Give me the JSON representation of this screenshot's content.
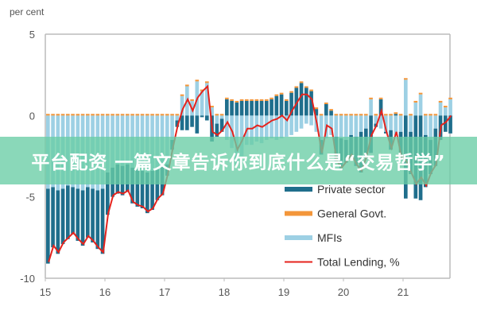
{
  "chart_data": {
    "type": "bar",
    "ylabel": "per cent",
    "ylim": [
      -10,
      5
    ],
    "yticks": [
      "5",
      "0",
      "-5",
      "-10"
    ],
    "xticks": [
      "15",
      "16",
      "17",
      "18",
      "19",
      "20",
      "21"
    ],
    "x_start": "2015-01",
    "frequency": "monthly",
    "grid": false,
    "legend_position": "bottom-right",
    "series": [
      {
        "name": "Private sector",
        "kind": "stacked-bar",
        "color": "#1f6e8c",
        "values": [
          -4.6,
          -3.7,
          -3.9,
          -3.4,
          -3.3,
          -2.9,
          -3.2,
          -3.4,
          -3.1,
          -3.3,
          -3.6,
          -4.0,
          -2.6,
          -1.8,
          -1.8,
          -1.8,
          -1.7,
          -2.2,
          -2.3,
          -2.3,
          -2.5,
          -2.4,
          -2.0,
          -1.9,
          -0.7,
          -0.6,
          -0.4,
          -0.9,
          -0.9,
          -0.7,
          -1.1,
          -0.1,
          -0.3,
          -1.6,
          -0.8,
          -0.8,
          1.0,
          0.9,
          0.8,
          0.9,
          0.9,
          0.9,
          0.9,
          0.9,
          0.9,
          1.0,
          1.2,
          1.3,
          0.9,
          1.4,
          1.7,
          2.0,
          1.7,
          1.5,
          0.4,
          -0.9,
          0.7,
          0.3,
          -1.6,
          -1.9,
          -1.4,
          -1.3,
          -1.8,
          -2.5,
          -1.8,
          -2.3,
          -0.2,
          1.0,
          -0.1,
          -1.2,
          0.1,
          -1.6,
          -5.1,
          -2.6,
          -5.1,
          -5.2,
          -3.2,
          -2.1,
          -2.3,
          -1.5,
          -1.0,
          -1.1
        ]
      },
      {
        "name": "General Govt.",
        "kind": "stacked-bar",
        "color": "#f3963a",
        "values": [
          0.1,
          0.1,
          0.1,
          0.1,
          0.1,
          0.1,
          0.1,
          0.1,
          0.1,
          0.1,
          0.1,
          0.1,
          0.1,
          0.1,
          0.1,
          0.1,
          0.1,
          0.1,
          0.1,
          0.1,
          0.1,
          0.1,
          0.1,
          0.1,
          0.1,
          0.1,
          0.1,
          0.1,
          0.1,
          0.1,
          0.1,
          0.1,
          0.1,
          0.1,
          0.1,
          0.1,
          0.1,
          0.1,
          0.1,
          0.1,
          0.1,
          0.1,
          0.1,
          0.1,
          0.1,
          0.1,
          0.1,
          0.1,
          0.1,
          0.1,
          0.1,
          0.1,
          0.1,
          0.1,
          0.1,
          0.1,
          0.1,
          0.1,
          0.1,
          0.1,
          0.1,
          0.1,
          0.1,
          0.1,
          0.1,
          0.1,
          0.1,
          0.1,
          0.1,
          0.1,
          0.1,
          0.1,
          0.1,
          0.1,
          0.1,
          0.1,
          0.1,
          0.1,
          0.1,
          0.1,
          0.1,
          0.1
        ]
      },
      {
        "name": "MFIs",
        "kind": "stacked-bar",
        "color": "#9dd0e4",
        "values": [
          -4.5,
          -4.4,
          -4.6,
          -4.5,
          -4.3,
          -4.4,
          -4.5,
          -4.6,
          -4.4,
          -4.5,
          -4.6,
          -4.5,
          -3.5,
          -3.2,
          -3.0,
          -3.1,
          -3.0,
          -3.2,
          -3.3,
          -3.4,
          -3.5,
          -3.4,
          -3.2,
          -3.0,
          -3.0,
          -1.5,
          -0.3,
          1.2,
          1.8,
          0.9,
          2.1,
          1.5,
          2.0,
          0.5,
          -0.5,
          -0.2,
          -1.5,
          -2.0,
          -3.0,
          -2.5,
          -1.8,
          -1.8,
          -1.6,
          -1.7,
          -1.5,
          -1.4,
          -1.5,
          -1.4,
          -1.3,
          -1.2,
          -1.0,
          -0.8,
          -0.5,
          -0.6,
          -1.0,
          -1.5,
          -1.4,
          -1.2,
          -1.3,
          -1.4,
          -1.5,
          -1.2,
          -1.3,
          -1.0,
          -0.8,
          1.0,
          -0.5,
          -0.8,
          -1.0,
          -0.9,
          -1.2,
          -1.0,
          2.2,
          -1.0,
          0.8,
          1.3,
          -1.2,
          -1.5,
          -0.8,
          0.8,
          0.5,
          1.0
        ]
      },
      {
        "name": "Total Lending, %",
        "kind": "line",
        "color": "#e5231d",
        "values": [
          -9.0,
          -8.0,
          -8.4,
          -7.8,
          -7.5,
          -7.2,
          -7.6,
          -7.9,
          -7.4,
          -7.7,
          -8.1,
          -8.4,
          -6.0,
          -4.9,
          -4.7,
          -4.8,
          -4.6,
          -5.3,
          -5.5,
          -5.6,
          -5.9,
          -5.7,
          -5.1,
          -4.8,
          -3.6,
          -2.0,
          -0.6,
          0.4,
          1.0,
          0.3,
          1.1,
          1.5,
          1.8,
          -1.0,
          -1.2,
          -0.9,
          -0.4,
          -1.0,
          -2.1,
          -1.5,
          -0.8,
          -0.8,
          -0.6,
          -0.7,
          -0.5,
          -0.3,
          -0.2,
          0.0,
          -0.3,
          0.3,
          0.8,
          1.3,
          1.3,
          1.0,
          -0.5,
          -2.3,
          -0.6,
          -0.8,
          -2.8,
          -3.2,
          -2.8,
          -2.4,
          -3.0,
          -3.4,
          -2.5,
          -1.2,
          -0.6,
          0.3,
          -1.0,
          -2.0,
          -1.0,
          -2.5,
          -2.8,
          -3.5,
          -4.2,
          -3.8,
          -4.3,
          -3.5,
          -3.0,
          -0.6,
          -0.4,
          0.0
        ]
      }
    ]
  },
  "banner": {
    "text": "平台配资 一篇文章告诉你到底什么是“交易哲学”"
  }
}
